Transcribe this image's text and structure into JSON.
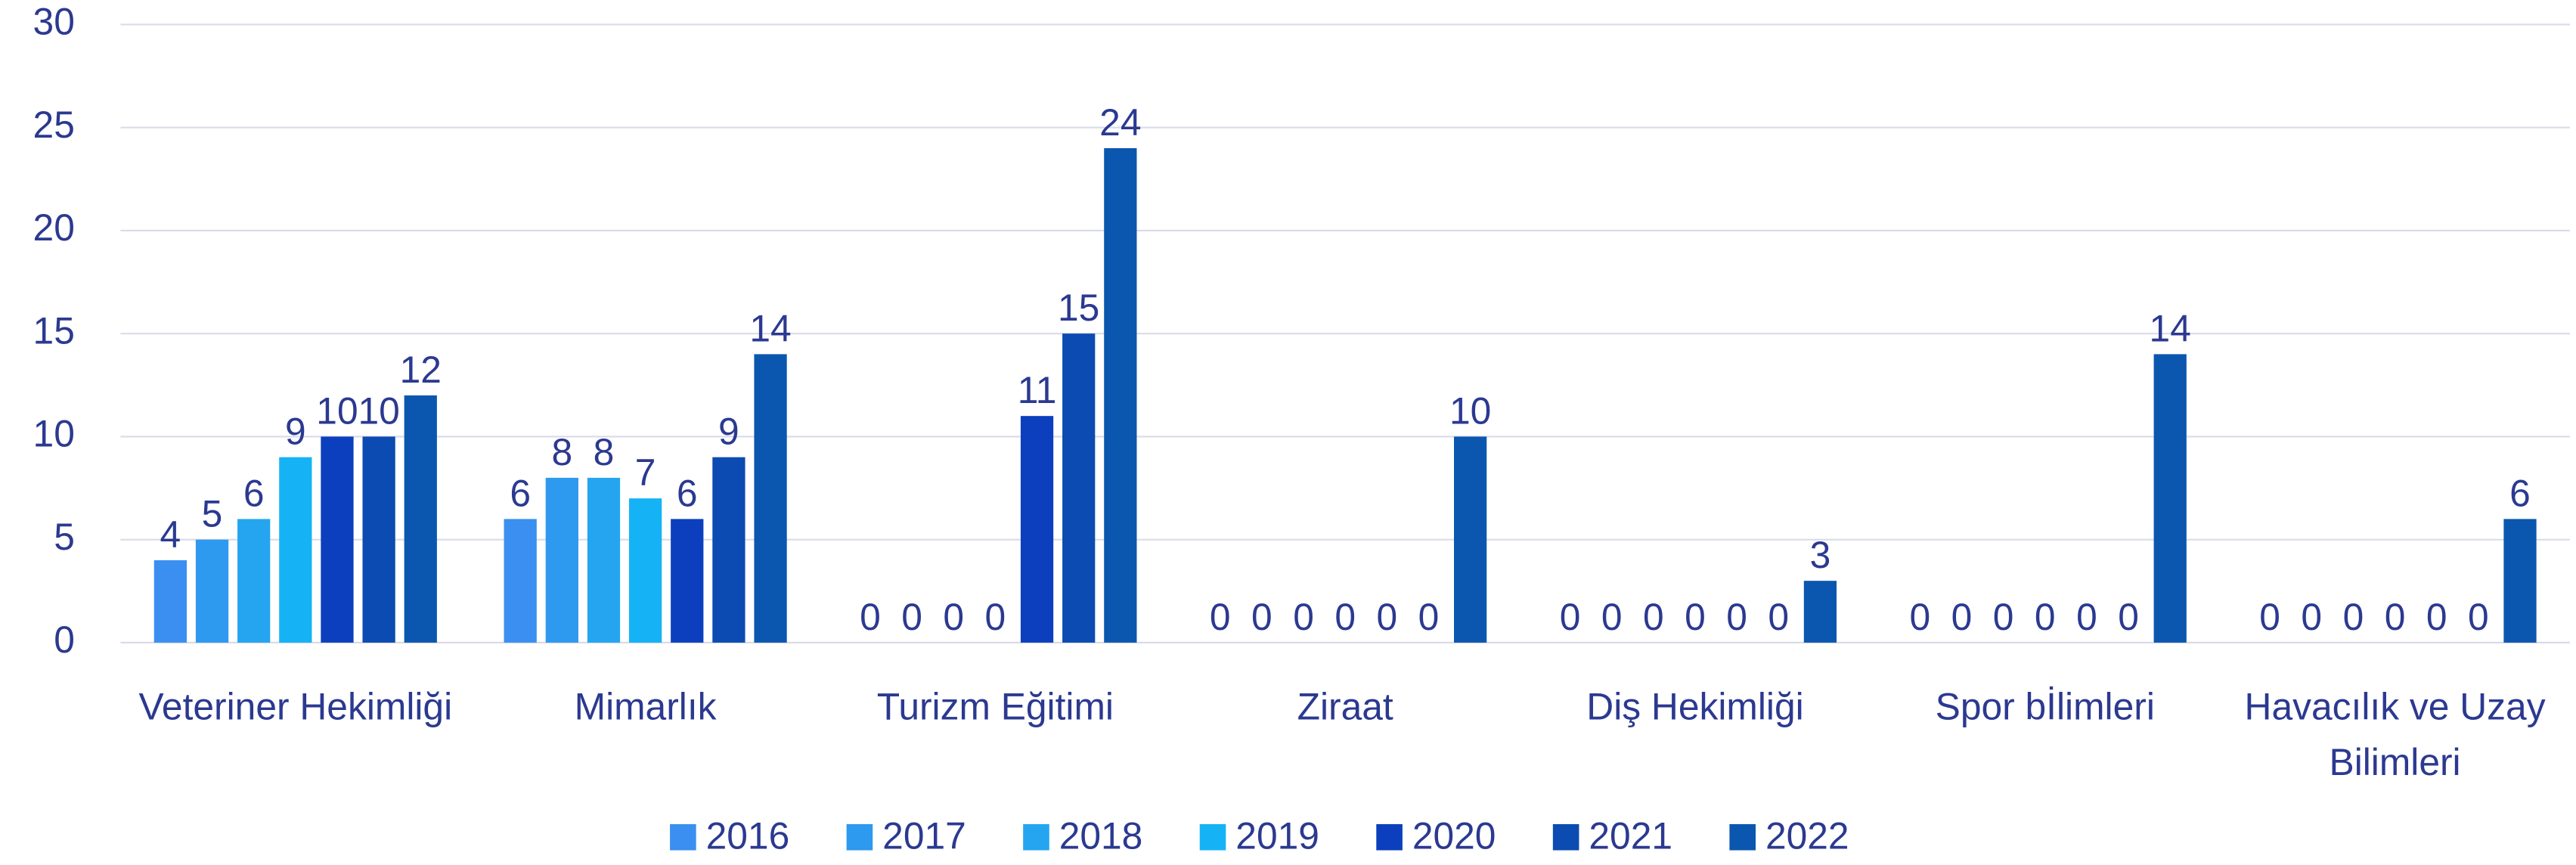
{
  "chart_data": {
    "type": "bar",
    "categories": [
      "Veteriner Hekimliği",
      "Mimarlık",
      "Turizm Eğitimi",
      "Ziraat",
      "Diş Hekimliği",
      "Spor bİlimleri",
      "Havacılık ve Uzay Bilimleri"
    ],
    "series": [
      {
        "name": "2016",
        "color": "#3a8ff0",
        "values": [
          4,
          6,
          0,
          0,
          0,
          0,
          0
        ]
      },
      {
        "name": "2017",
        "color": "#2d99ef",
        "values": [
          5,
          8,
          0,
          0,
          0,
          0,
          0
        ]
      },
      {
        "name": "2018",
        "color": "#25a5f0",
        "values": [
          6,
          8,
          0,
          0,
          0,
          0,
          0
        ]
      },
      {
        "name": "2019",
        "color": "#15b3f5",
        "values": [
          9,
          7,
          0,
          0,
          0,
          0,
          0
        ]
      },
      {
        "name": "2020",
        "color": "#0c3fbd",
        "values": [
          10,
          6,
          11,
          0,
          0,
          0,
          0
        ]
      },
      {
        "name": "2021",
        "color": "#0c4bb1",
        "values": [
          10,
          9,
          15,
          0,
          0,
          0,
          0
        ]
      },
      {
        "name": "2022",
        "color": "#0b57af",
        "values": [
          12,
          14,
          24,
          10,
          3,
          14,
          6
        ]
      }
    ],
    "ylim": [
      0,
      30
    ],
    "yticks": [
      0,
      5,
      10,
      15,
      20,
      25,
      30
    ],
    "grid": true,
    "legend": "bottom"
  }
}
